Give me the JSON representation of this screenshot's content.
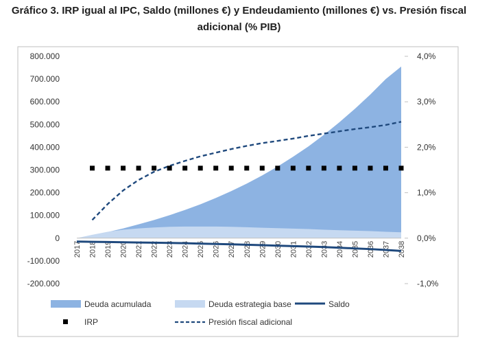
{
  "chart_data": {
    "type": "area",
    "title_line1": "Gráfico 3. IRP igual al IPC, Saldo (millones €) y Endeudamiento (millones €) vs. Presión fiscal",
    "title_line2": "adicional (% PIB)",
    "categories": [
      "2017",
      "2018",
      "2019",
      "2020",
      "2021",
      "2022",
      "2023",
      "2024",
      "2025",
      "2026",
      "2027",
      "2028",
      "2029",
      "2030",
      "2031",
      "2032",
      "2033",
      "2034",
      "2035",
      "2036",
      "2037",
      "2038"
    ],
    "y_left": {
      "min": -200000,
      "max": 800000,
      "ticks": [
        800000,
        700000,
        600000,
        500000,
        400000,
        300000,
        200000,
        100000,
        0,
        -100000,
        -200000
      ],
      "tick_labels": [
        "800.000",
        "700.000",
        "600.000",
        "500.000",
        "400.000",
        "300.000",
        "200.000",
        "100.000",
        "0",
        "-100.000",
        "-200.000"
      ]
    },
    "y_right": {
      "min": -0.01,
      "max": 0.04,
      "ticks": [
        0.04,
        0.03,
        0.02,
        0.01,
        0.0,
        -0.01
      ],
      "tick_labels": [
        "4,0%",
        "3,0%",
        "2,0%",
        "1,0%",
        "0,0%",
        "-1,0%"
      ]
    },
    "series": [
      {
        "name": "Deuda acumulada",
        "kind": "area",
        "axis": "left",
        "color": "#8db3e2",
        "values": [
          0,
          12000,
          27000,
          43000,
          61000,
          80000,
          101000,
          124000,
          149000,
          177000,
          207000,
          240000,
          276000,
          315000,
          358000,
          404000,
          455000,
          510000,
          569000,
          632000,
          700000,
          755000
        ]
      },
      {
        "name": "Deuda estrategia base",
        "kind": "area",
        "axis": "left",
        "color": "#c6d9f1",
        "values": [
          0,
          15000,
          28000,
          37000,
          43000,
          47000,
          50000,
          51000,
          51000,
          51000,
          50000,
          48000,
          46000,
          44000,
          42000,
          40000,
          37000,
          35000,
          33000,
          31000,
          28000,
          26000
        ]
      },
      {
        "name": "Saldo",
        "kind": "line",
        "axis": "left",
        "color": "#1f497d",
        "values": [
          -15000,
          -16000,
          -17000,
          -18000,
          -19000,
          -20000,
          -21000,
          -22000,
          -24000,
          -25500,
          -27000,
          -29000,
          -31000,
          -33000,
          -35000,
          -37000,
          -39000,
          -42000,
          -45000,
          -48000,
          -52000,
          -56000
        ]
      },
      {
        "name": "IRP",
        "kind": "marker",
        "axis": "left",
        "color": "#000000",
        "values": [
          null,
          308000,
          308000,
          308000,
          308000,
          308000,
          308000,
          308000,
          308000,
          308000,
          308000,
          308000,
          308000,
          308000,
          308000,
          308000,
          308000,
          308000,
          308000,
          308000,
          308000,
          308000
        ]
      },
      {
        "name": "Presión fiscal adicional",
        "kind": "dashed-line",
        "axis": "right",
        "color": "#1f497d",
        "values": [
          null,
          0.004,
          0.0075,
          0.0105,
          0.0128,
          0.0146,
          0.0159,
          0.017,
          0.018,
          0.0188,
          0.0196,
          0.0203,
          0.0209,
          0.0214,
          0.0219,
          0.0225,
          0.023,
          0.0235,
          0.024,
          0.0244,
          0.0249,
          0.0256
        ]
      }
    ],
    "legend_position": "bottom",
    "grid": false
  }
}
